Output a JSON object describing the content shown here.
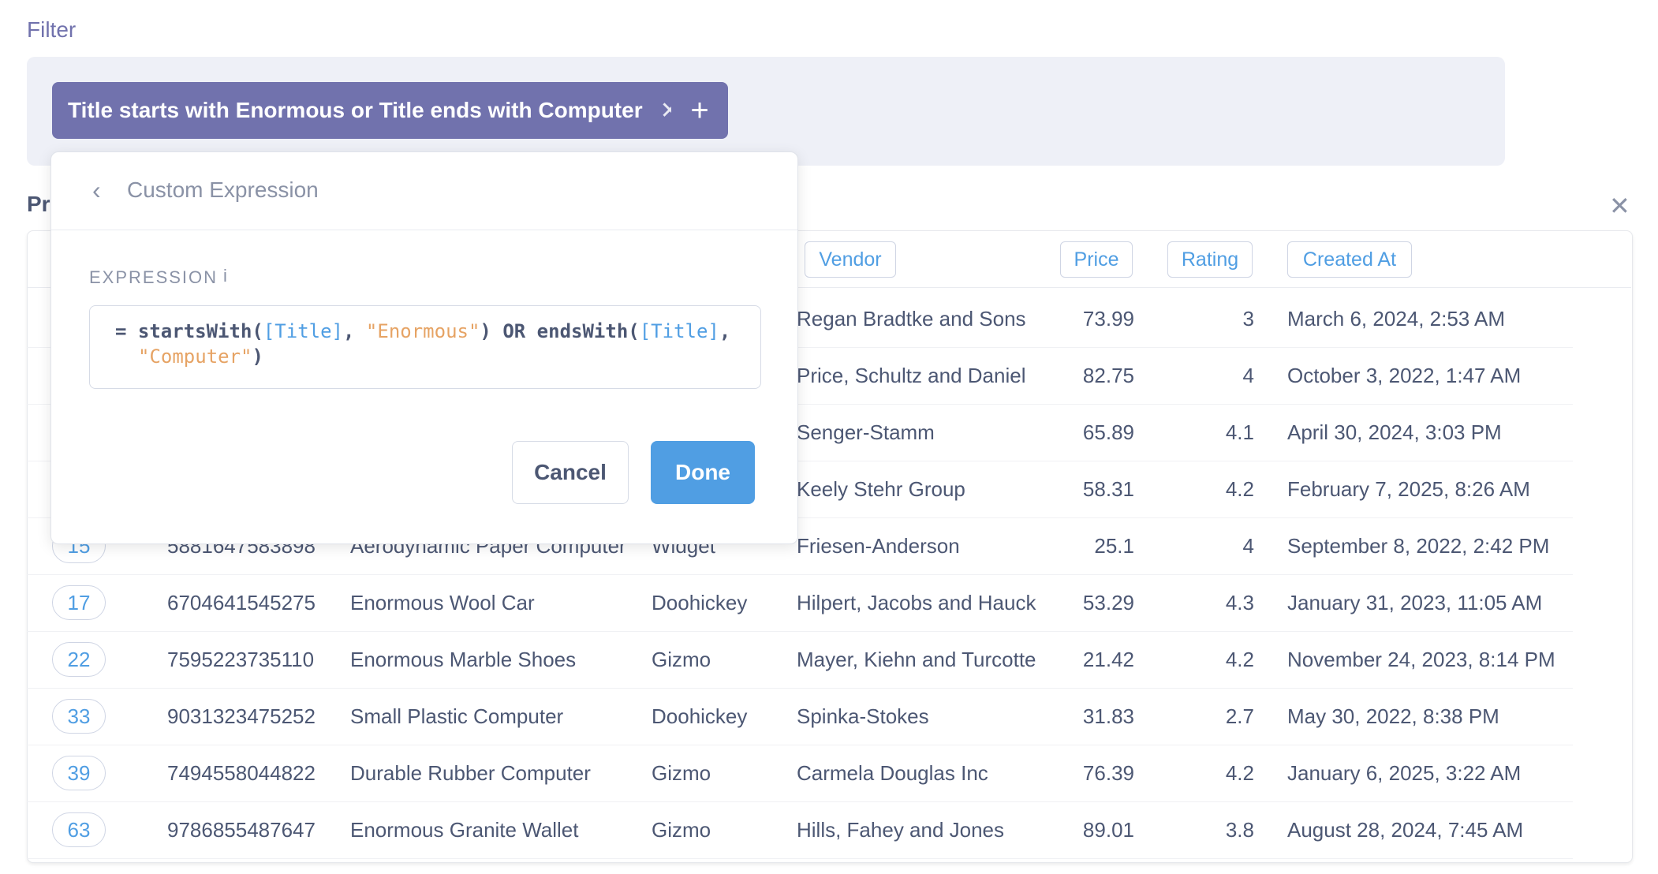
{
  "filter": {
    "heading": "Filter",
    "pill_label": "Title starts with Enormous or Title ends with Computer",
    "pill_close_icon": "close-icon",
    "add_icon": "plus-icon"
  },
  "section": {
    "title": "Pr"
  },
  "popover": {
    "title": "Custom Expression",
    "expression_label": "EXPRESSION",
    "info_glyph": "i",
    "expression_line1": "= startsWith([Title], \"Enormous\") OR endsWith([Title],",
    "expression_line2": "\"Computer\")",
    "tokens": {
      "eq": "=",
      "fn1": "startsWith(",
      "field1": "[Title]",
      "sep1": ", ",
      "str1": "\"Enormous\"",
      "op": ") OR ",
      "fn2": "endsWith(",
      "field2": "[Title]",
      "sep2": ",",
      "str2": "\"Computer\"",
      "close": ")"
    },
    "cancel_label": "Cancel",
    "done_label": "Done"
  },
  "table": {
    "headers": {
      "vendor": "Vendor",
      "price": "Price",
      "rating": "Rating",
      "created_at": "Created At"
    },
    "rows": [
      {
        "id": "",
        "ean": "",
        "title": "",
        "category": "",
        "vendor": "Regan Bradtke and Sons",
        "price": "73.99",
        "rating": "3",
        "created_at": "March 6, 2024, 2:53 AM"
      },
      {
        "id": "",
        "ean": "",
        "title": "",
        "category": "",
        "vendor": "Price, Schultz and Daniel",
        "price": "82.75",
        "rating": "4",
        "created_at": "October 3, 2022, 1:47 AM"
      },
      {
        "id": "",
        "ean": "",
        "title": "",
        "category": "",
        "vendor": "Senger-Stamm",
        "price": "65.89",
        "rating": "4.1",
        "created_at": "April 30, 2024, 3:03 PM"
      },
      {
        "id": "",
        "ean": "",
        "title": "",
        "category": "",
        "vendor": "Keely Stehr Group",
        "price": "58.31",
        "rating": "4.2",
        "created_at": "February 7, 2025, 8:26 AM"
      },
      {
        "id": "15",
        "ean": "5881647583898",
        "title": "Aerodynamic Paper Computer",
        "category": "Widget",
        "vendor": "Friesen-Anderson",
        "price": "25.1",
        "rating": "4",
        "created_at": "September 8, 2022, 2:42 PM"
      },
      {
        "id": "17",
        "ean": "6704641545275",
        "title": "Enormous Wool Car",
        "category": "Doohickey",
        "vendor": "Hilpert, Jacobs and Hauck",
        "price": "53.29",
        "rating": "4.3",
        "created_at": "January 31, 2023, 11:05 AM"
      },
      {
        "id": "22",
        "ean": "7595223735110",
        "title": "Enormous Marble Shoes",
        "category": "Gizmo",
        "vendor": "Mayer, Kiehn and Turcotte",
        "price": "21.42",
        "rating": "4.2",
        "created_at": "November 24, 2023, 8:14 PM"
      },
      {
        "id": "33",
        "ean": "9031323475252",
        "title": "Small Plastic Computer",
        "category": "Doohickey",
        "vendor": "Spinka-Stokes",
        "price": "31.83",
        "rating": "2.7",
        "created_at": "May 30, 2022, 8:38 PM"
      },
      {
        "id": "39",
        "ean": "7494558044822",
        "title": "Durable Rubber Computer",
        "category": "Gizmo",
        "vendor": "Carmela Douglas Inc",
        "price": "76.39",
        "rating": "4.2",
        "created_at": "January 6, 2025, 3:22 AM"
      },
      {
        "id": "63",
        "ean": "9786855487647",
        "title": "Enormous Granite Wallet",
        "category": "Gizmo",
        "vendor": "Hills, Fahey and Jones",
        "price": "89.01",
        "rating": "3.8",
        "created_at": "August 28, 2024, 7:45 AM"
      }
    ]
  },
  "colors": {
    "accent": "#7172ad",
    "brand": "#509ee3",
    "string": "#e6a364",
    "text": "#4c5773"
  }
}
